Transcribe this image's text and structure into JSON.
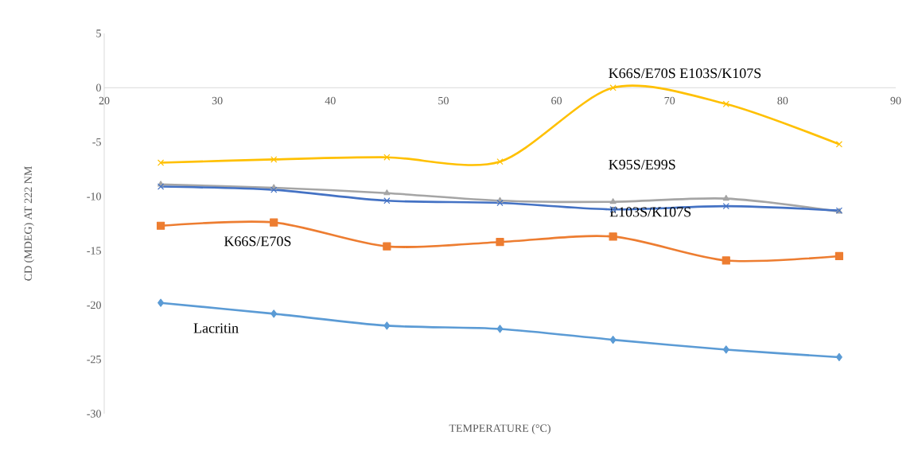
{
  "chart_data": {
    "type": "line",
    "xlabel": "TEMPERATURE (°C)",
    "ylabel": "CD (MDEG) AT 222 NM",
    "x": [
      25,
      35,
      45,
      55,
      65,
      75,
      85
    ],
    "xlim": [
      20,
      90
    ],
    "xticks": [
      20,
      30,
      40,
      50,
      60,
      70,
      80,
      90
    ],
    "ylim": [
      -30,
      5
    ],
    "yticks": [
      -30,
      -25,
      -20,
      -15,
      -10,
      -5,
      0,
      5
    ],
    "grid": false,
    "legend": false,
    "series": [
      {
        "name": "Lacritin",
        "color": "#5b9bd5",
        "marker": "diamond",
        "values": [
          -19.8,
          -20.8,
          -21.9,
          -22.2,
          -23.2,
          -24.1,
          -24.8
        ]
      },
      {
        "name": "K66S/E70S",
        "color": "#ed7d31",
        "marker": "square",
        "values": [
          -12.7,
          -12.4,
          -14.6,
          -14.2,
          -13.7,
          -15.9,
          -15.5
        ]
      },
      {
        "name": "K95S/E99S",
        "color": "#a5a5a5",
        "marker": "triangle",
        "values": [
          -8.9,
          -9.2,
          -9.7,
          -10.4,
          -10.5,
          -10.2,
          -11.4
        ]
      },
      {
        "name": "E103S/K107S",
        "color": "#4472c4",
        "marker": "cross",
        "values": [
          -9.1,
          -9.4,
          -10.4,
          -10.6,
          -11.2,
          -10.9,
          -11.3
        ]
      },
      {
        "name": "K66S/E70S E103S/K107S",
        "color": "#ffc000",
        "marker": "cross",
        "values": [
          -6.9,
          -6.6,
          -6.4,
          -6.8,
          0.0,
          -1.5,
          -5.2
        ]
      }
    ]
  }
}
